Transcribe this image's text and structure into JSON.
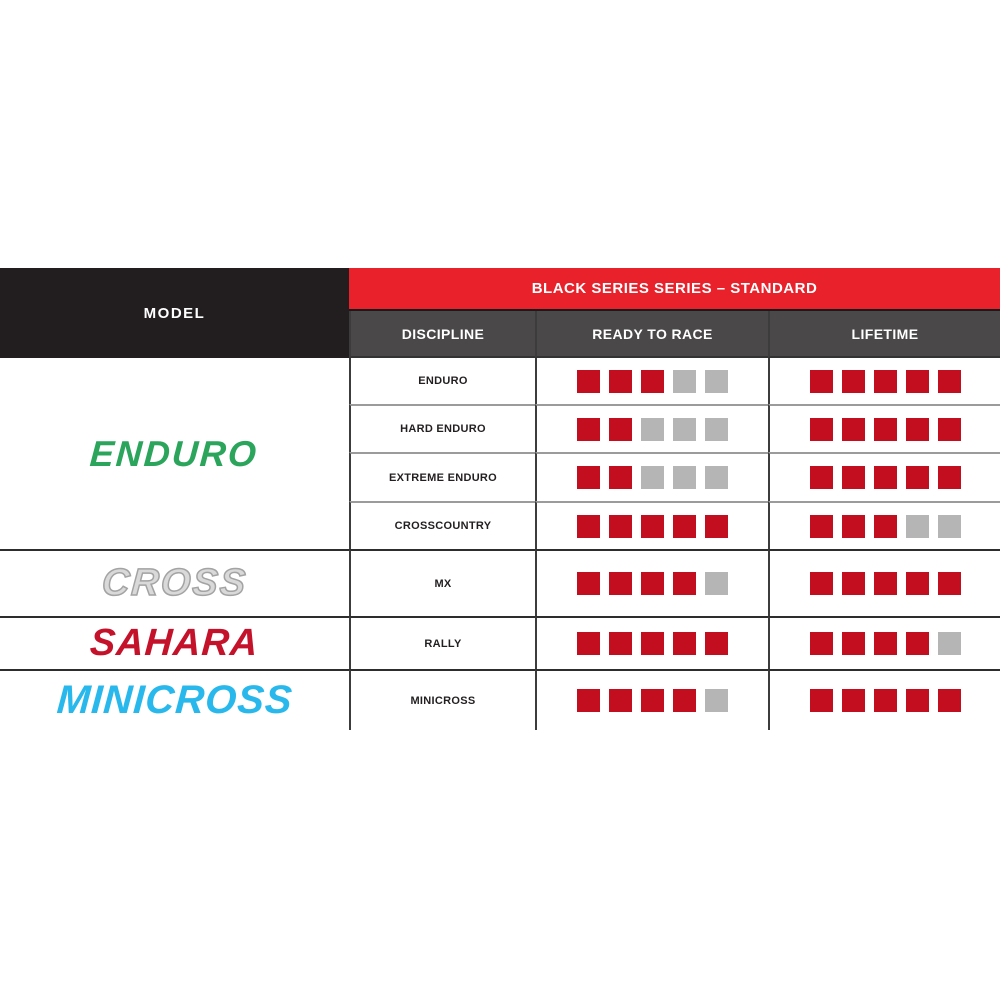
{
  "model_header": "MODEL",
  "title": "BLACK SERIES SERIES – STANDARD",
  "columns": [
    "DISCIPLINE",
    "READY TO RACE",
    "LIFETIME"
  ],
  "rating_scale": 5,
  "models": [
    {
      "name": "ENDURO",
      "color": "#2ca55c"
    },
    {
      "name": "CROSS",
      "color": "#d9d9d9"
    },
    {
      "name": "SAHARA",
      "color": "#c5122b"
    },
    {
      "name": "MINICROSS",
      "color": "#29b8ec"
    }
  ],
  "rows": [
    {
      "discipline": "ENDURO",
      "ready_to_race": 3,
      "lifetime": 5
    },
    {
      "discipline": "HARD ENDURO",
      "ready_to_race": 2,
      "lifetime": 5
    },
    {
      "discipline": "EXTREME ENDURO",
      "ready_to_race": 2,
      "lifetime": 5
    },
    {
      "discipline": "CROSSCOUNTRY",
      "ready_to_race": 5,
      "lifetime": 3
    },
    {
      "discipline": "MX",
      "ready_to_race": 4,
      "lifetime": 5
    },
    {
      "discipline": "RALLY",
      "ready_to_race": 5,
      "lifetime": 4
    },
    {
      "discipline": "MINICROSS",
      "ready_to_race": 4,
      "lifetime": 5
    }
  ],
  "colors": {
    "header_red": "#e8212b",
    "subheader_gray": "#4a4848",
    "model_black": "#221e1f",
    "square_filled": "#c20e1e",
    "square_empty": "#b5b5b5"
  },
  "chart_data": {
    "type": "table",
    "title": "BLACK SERIES SERIES – STANDARD",
    "columns": [
      "MODEL",
      "DISCIPLINE",
      "READY TO RACE",
      "LIFETIME"
    ],
    "rating_scale": 5,
    "rows": [
      [
        "ENDURO",
        "ENDURO",
        3,
        5
      ],
      [
        "ENDURO",
        "HARD ENDURO",
        2,
        5
      ],
      [
        "ENDURO",
        "EXTREME ENDURO",
        2,
        5
      ],
      [
        "ENDURO",
        "CROSSCOUNTRY",
        5,
        3
      ],
      [
        "CROSS",
        "MX",
        4,
        5
      ],
      [
        "SAHARA",
        "RALLY",
        5,
        4
      ],
      [
        "MINICROSS",
        "MINICROSS",
        4,
        5
      ]
    ]
  }
}
